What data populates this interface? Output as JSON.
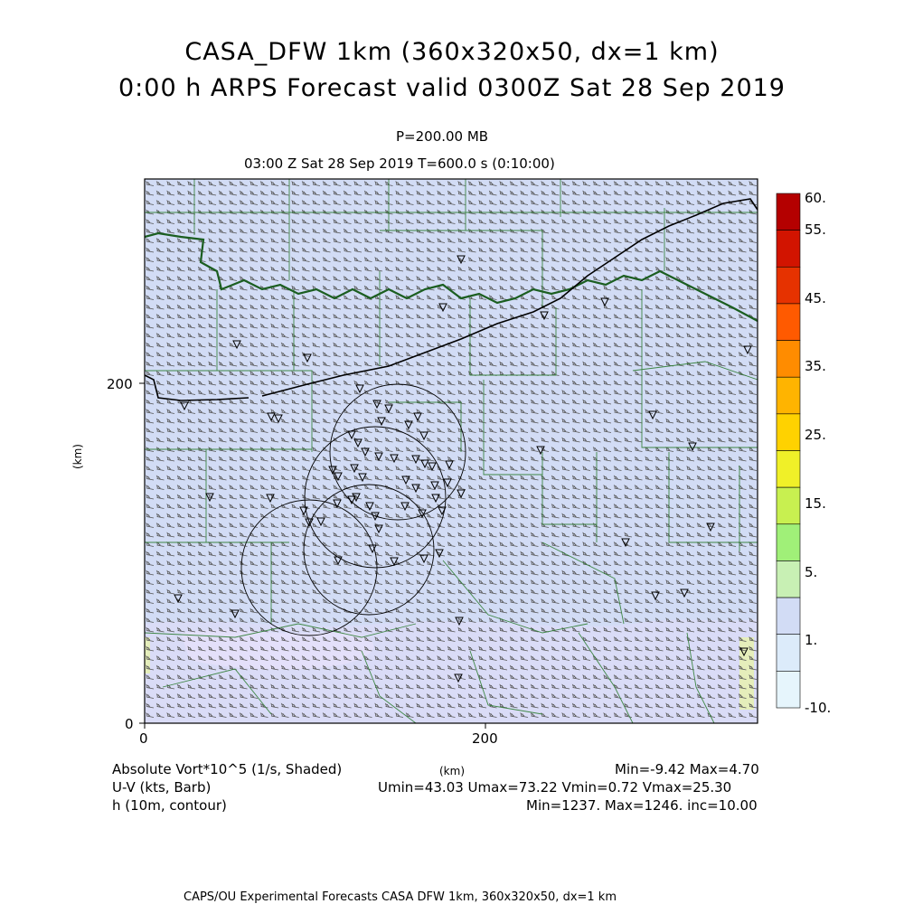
{
  "header": {
    "title_line1": "CASA_DFW 1km (360x320x50, dx=1 km)",
    "title_line2": "0:00 h ARPS Forecast valid 0300Z Sat 28 Sep 2019",
    "level": "P=200.00 MB",
    "time_info": "03:00 Z Sat 28 Sep 2019    T=600.0 s (0:10:00)"
  },
  "axes": {
    "x_ticks": [
      "0",
      "200"
    ],
    "y_ticks": [
      "0",
      "200"
    ],
    "x_label": "(km)",
    "y_label": "(km)"
  },
  "colorbar": {
    "labels": [
      "60.",
      "55.",
      "45.",
      "35.",
      "25.",
      "15.",
      "5.",
      "1.",
      "-10."
    ],
    "colors": [
      "#b40000",
      "#d21400",
      "#e63200",
      "#ff5a00",
      "#ff8c00",
      "#ffb400",
      "#ffd200",
      "#f0f028",
      "#c8f050",
      "#a0f078",
      "#c8f0b4",
      "#d2dcf5",
      "#dcebfa",
      "#e6f5fc"
    ]
  },
  "legend": {
    "field1": "Absolute Vort*10^5 (1/s, Shaded)",
    "field2": "U-V (kts, Barb)",
    "field3": "h (10m, contour)",
    "field1_stats": "Min=-9.42 Max=4.70",
    "field2_stats": "Umin=43.03 Umax=73.22 Vmin=0.72 Vmax=25.30",
    "field3_stats": "Min=1237. Max=1246. inc=10.00"
  },
  "footer": "CAPS/OU Experimental Forecasts  CASA DFW 1km, 360x320x50, dx=1 km"
}
